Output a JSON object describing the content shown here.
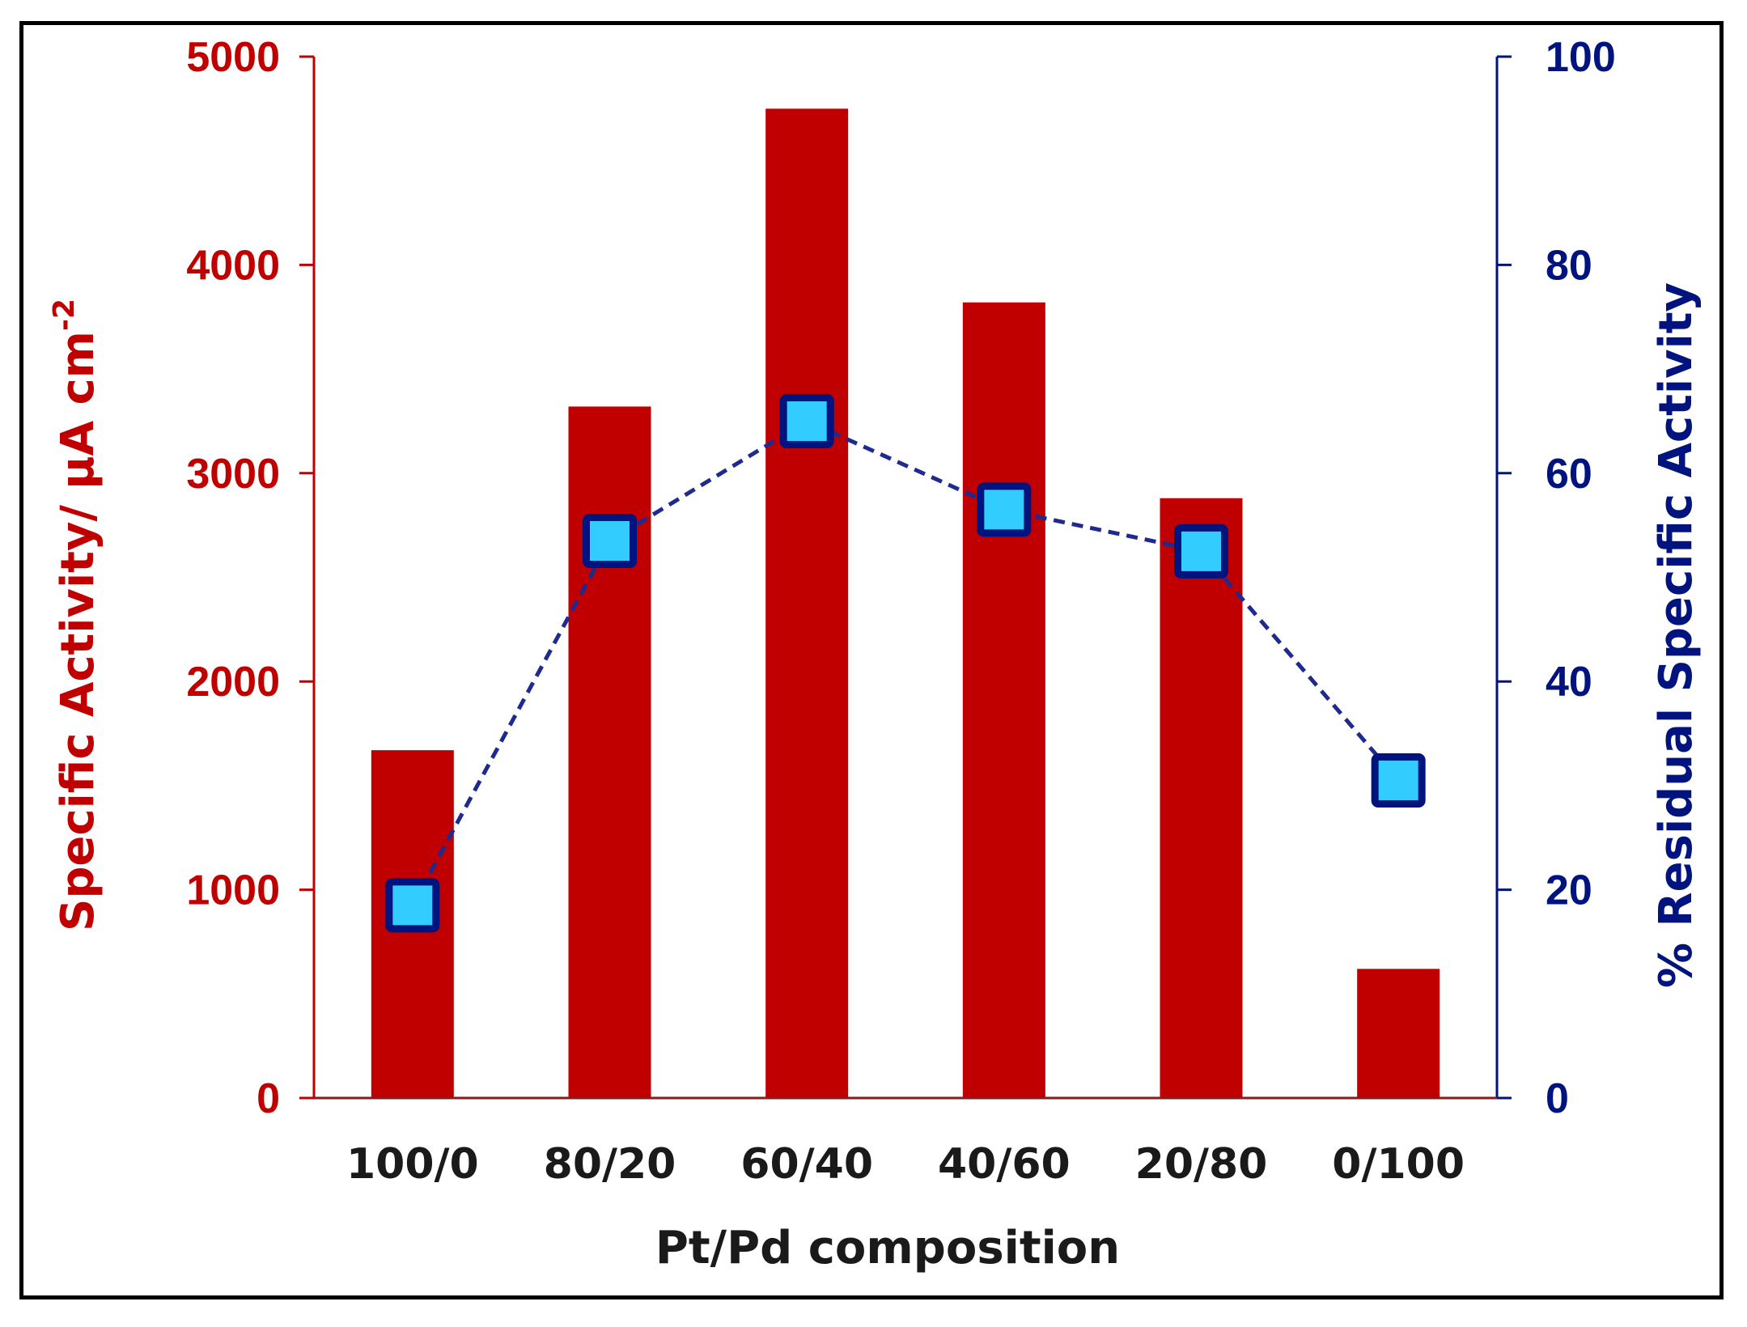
{
  "chart_data": {
    "type": "bar+line",
    "categories": [
      "100/0",
      "80/20",
      "60/40",
      "40/60",
      "20/80",
      "0/100"
    ],
    "series": [
      {
        "name": "Specific Activity",
        "type": "bar",
        "axis": "left",
        "color": "#c00000",
        "values": [
          1670,
          3320,
          4750,
          3820,
          2880,
          620
        ]
      },
      {
        "name": "% Residual Specific Activity",
        "type": "line",
        "axis": "right",
        "line_color": "#1f2a8f",
        "marker_fill": "#33ccff",
        "marker_edge": "#00137f",
        "line_style": "dashed",
        "marker": "square",
        "values": [
          18.5,
          53.5,
          65,
          56.5,
          52.5,
          30.5
        ]
      }
    ],
    "xlabel": "Pt/Pd composition",
    "ylabel_left_main": "Specific Activity/ μA cm",
    "ylabel_left_sup": "-2",
    "ylabel_right": "% Residual Specific Activity",
    "ylim_left": [
      0,
      5000
    ],
    "ylim_right": [
      0,
      100
    ],
    "yticks_left": [
      "0",
      "1000",
      "2000",
      "3000",
      "4000",
      "5000"
    ],
    "yticks_right": [
      "0",
      "20",
      "40",
      "60",
      "80",
      "100"
    ],
    "left_axis_color": "#c00000",
    "right_axis_color": "#00137f",
    "grid": false,
    "legend": "none"
  }
}
